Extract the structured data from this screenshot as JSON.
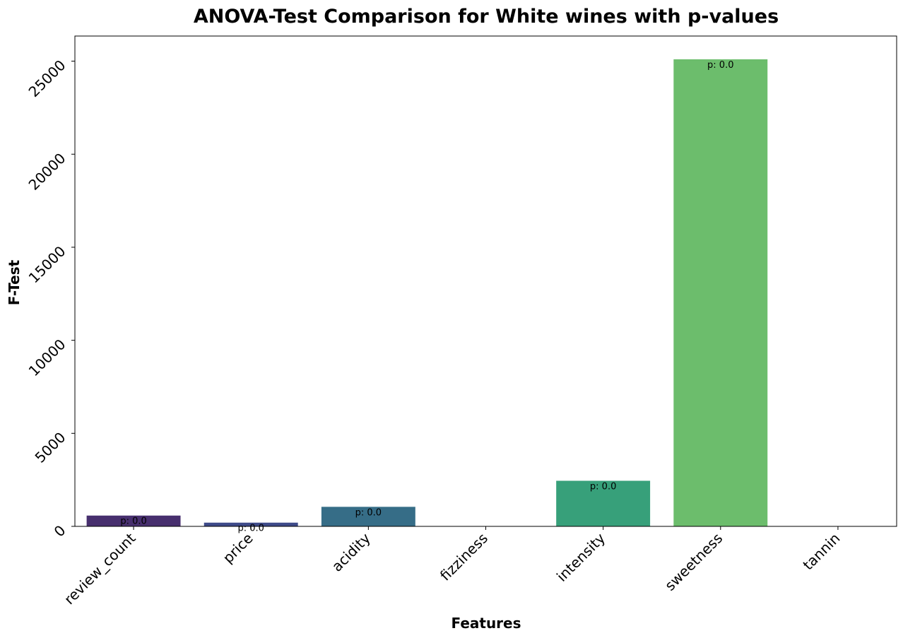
{
  "chart_data": {
    "type": "bar",
    "title": "ANOVA-Test Comparison for White wines with p-values",
    "xlabel": "Features",
    "ylabel": "F-Test",
    "categories": [
      "review_count",
      "price",
      "acidity",
      "fizziness",
      "intensity",
      "sweetness",
      "tannin"
    ],
    "values": [
      580,
      200,
      1050,
      0,
      2450,
      25100,
      0
    ],
    "p_labels": [
      "p: 0.0",
      "p: 0.0",
      "p: 0.0",
      "",
      "p: 0.0",
      "p: 0.0",
      ""
    ],
    "colors": [
      "#472f6e",
      "#3e4a89",
      "#366d87",
      "#2a8a8a",
      "#37a07a",
      "#6cbd6c",
      "#a9d85a"
    ],
    "yticks": [
      0,
      5000,
      10000,
      15000,
      20000,
      25000
    ],
    "ylim": [
      0,
      26350
    ],
    "grid": false,
    "legend": "none"
  }
}
